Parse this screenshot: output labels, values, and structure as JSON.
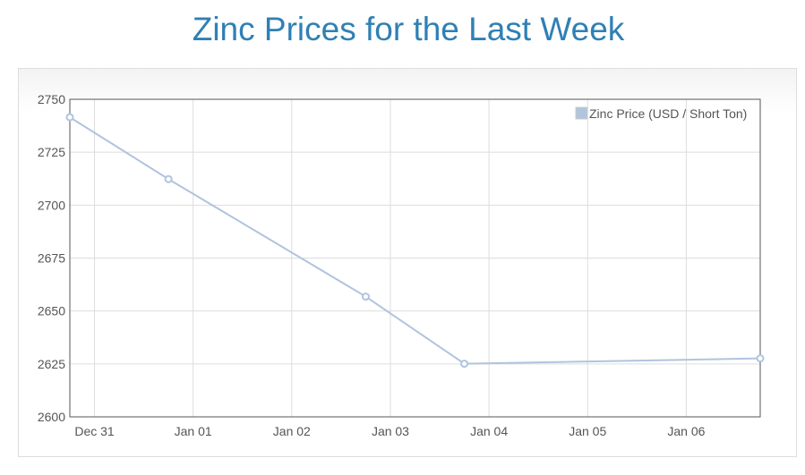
{
  "title": "Zinc Prices for the Last Week",
  "chart_data": {
    "type": "line",
    "title": "Zinc Prices for the Last Week",
    "xlabel": "",
    "ylabel": "",
    "x_unit": "days offset from Dec 31",
    "x_tick_values": [
      0,
      1,
      2,
      3,
      4,
      5,
      6
    ],
    "x_tick_labels": [
      "Dec 31",
      "Jan 01",
      "Jan 02",
      "Jan 03",
      "Jan 04",
      "Jan 05",
      "Jan 06"
    ],
    "xlim": [
      -0.25,
      6.75
    ],
    "ylim": [
      2600,
      2750
    ],
    "y_ticks": [
      2600,
      2625,
      2650,
      2675,
      2700,
      2725,
      2750
    ],
    "grid": true,
    "legend_position": "top-right",
    "series": [
      {
        "name": "Zinc Price (USD / Short Ton)",
        "color": "#b0c4de",
        "x": [
          -0.25,
          0.75,
          2.75,
          3.75,
          6.75
        ],
        "values": [
          2741.5,
          2712.3,
          2656.8,
          2625.1,
          2627.6
        ]
      }
    ]
  }
}
